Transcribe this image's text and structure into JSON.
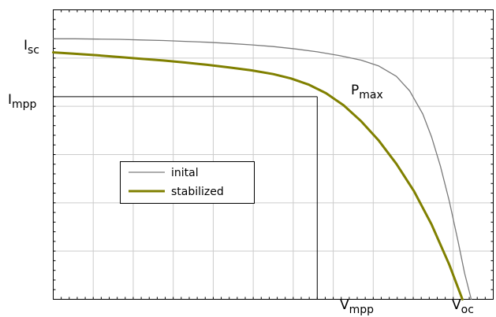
{
  "chart_data": {
    "type": "line",
    "title": "",
    "xlabel": "",
    "ylabel": "",
    "xlim": [
      0,
      1
    ],
    "ylim": [
      0,
      1
    ],
    "grid": true,
    "legend_position": "center-left",
    "series": [
      {
        "name": "inital",
        "color": "#7a7a7a",
        "x": [
          0,
          0.05,
          0.1,
          0.15,
          0.2,
          0.25,
          0.3,
          0.35,
          0.4,
          0.45,
          0.5,
          0.55,
          0.6,
          0.65,
          0.7,
          0.74,
          0.78,
          0.81,
          0.84,
          0.86,
          0.88,
          0.9,
          0.92,
          0.935,
          0.95
        ],
        "y": [
          0.9,
          0.9,
          0.899,
          0.898,
          0.896,
          0.894,
          0.891,
          0.888,
          0.884,
          0.879,
          0.873,
          0.865,
          0.855,
          0.842,
          0.826,
          0.806,
          0.77,
          0.72,
          0.64,
          0.56,
          0.46,
          0.34,
          0.2,
          0.09,
          0.0
        ]
      },
      {
        "name": "stabilized",
        "color": "#808000",
        "x": [
          0,
          0.05,
          0.1,
          0.15,
          0.2,
          0.25,
          0.3,
          0.35,
          0.4,
          0.45,
          0.5,
          0.54,
          0.58,
          0.62,
          0.66,
          0.7,
          0.74,
          0.78,
          0.82,
          0.86,
          0.9,
          0.93
        ],
        "y": [
          0.853,
          0.848,
          0.843,
          0.837,
          0.831,
          0.825,
          0.818,
          0.81,
          0.801,
          0.791,
          0.778,
          0.763,
          0.742,
          0.712,
          0.67,
          0.615,
          0.548,
          0.468,
          0.373,
          0.258,
          0.12,
          0.0
        ]
      }
    ],
    "guide_point": {
      "x": 0.6,
      "y": 0.7
    },
    "labels": {
      "isc": {
        "main": "I",
        "sub": "sc"
      },
      "impp": {
        "main": "I",
        "sub": "mpp"
      },
      "pmax": {
        "main": "P",
        "sub": "max"
      },
      "vmpp": {
        "main": "V",
        "sub": "mpp"
      },
      "voc": {
        "main": "V",
        "sub": "oc"
      }
    }
  }
}
